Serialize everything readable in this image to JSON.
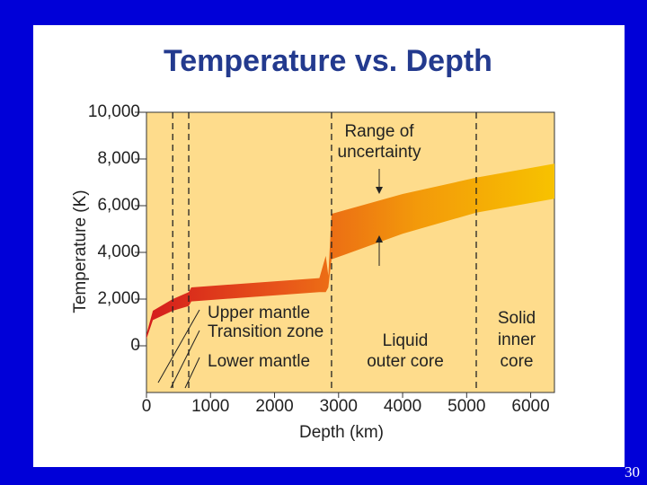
{
  "chart_data": {
    "type": "band",
    "title": "Temperature vs. Depth",
    "x_label": "Depth (km)",
    "y_label": "Temperature (K)",
    "xlim": [
      0,
      6371
    ],
    "ylim": [
      -2000,
      10000
    ],
    "xticks": [
      0,
      1000,
      2000,
      3000,
      4000,
      5000,
      6000
    ],
    "yticks": [
      0,
      {
        "value": 2000,
        "label": "2,000"
      },
      {
        "value": 4000,
        "label": "4,000"
      },
      {
        "value": 6000,
        "label": "6,000"
      },
      {
        "value": 8000,
        "label": "8,000"
      },
      {
        "value": 10000,
        "label": "10,000"
      }
    ],
    "x": [
      0,
      100,
      410,
      660,
      700,
      2700,
      2800,
      2840,
      2890,
      4000,
      5150,
      6371
    ],
    "low": [
      300,
      1100,
      1500,
      1700,
      1900,
      2300,
      2300,
      2500,
      3700,
      4800,
      5700,
      6300
    ],
    "high": [
      500,
      1500,
      2000,
      2300,
      2500,
      2900,
      3850,
      3000,
      5650,
      6500,
      7200,
      7800
    ],
    "boundaries": [
      410,
      660,
      2890,
      5150
    ],
    "annotations": [
      "Range of",
      "uncertainty",
      "Upper mantle",
      "Transition zone",
      "Lower mantle",
      "Liquid",
      "outer core",
      "Solid",
      "inner",
      "core"
    ],
    "colors": [
      "#d41c1c",
      "#e8561a",
      "#f39a0a",
      "#f7c200"
    ],
    "background": "#fedc8c"
  },
  "page_number": "30"
}
